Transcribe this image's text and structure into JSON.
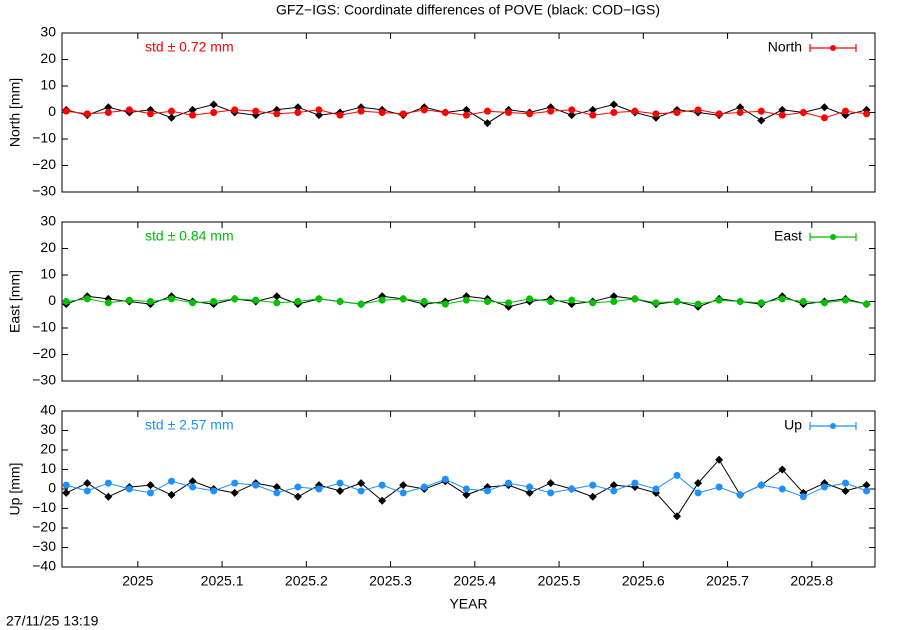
{
  "title": "GFZ−IGS: Coordinate differences of POVE (black: COD−IGS)",
  "timestamp": "27/11/25 13:19",
  "chart_data": [
    {
      "type": "line",
      "ylabel": "North [mm]",
      "annotation": "std ± 0.72 mm",
      "legend": "upper right",
      "xlim": [
        2024.91,
        2025.875
      ],
      "ylim": [
        -30,
        30
      ],
      "xticks": [
        2025,
        2025.1,
        2025.2,
        2025.3,
        2025.4,
        2025.5,
        2025.6,
        2025.7,
        2025.8
      ],
      "yticks": [
        30,
        20,
        10,
        0,
        {
          "value": -10,
          "label": "−10"
        },
        {
          "value": -20,
          "label": "−20"
        },
        {
          "value": -30,
          "label": "−30"
        }
      ],
      "x": [
        2024.915,
        2024.94,
        2024.965,
        2024.99,
        2025.015,
        2025.04,
        2025.065,
        2025.09,
        2025.115,
        2025.14,
        2025.165,
        2025.19,
        2025.215,
        2025.24,
        2025.265,
        2025.29,
        2025.315,
        2025.34,
        2025.365,
        2025.39,
        2025.415,
        2025.44,
        2025.465,
        2025.49,
        2025.515,
        2025.54,
        2025.565,
        2025.59,
        2025.615,
        2025.64,
        2025.665,
        2025.69,
        2025.715,
        2025.74,
        2025.765,
        2025.79,
        2025.815,
        2025.84,
        2025.865
      ],
      "series": [
        {
          "color": "#000000",
          "values": [
            1,
            -1,
            2,
            0,
            1,
            -2,
            1,
            3,
            0,
            -1,
            1,
            2,
            -1,
            0,
            2,
            1,
            -1,
            2,
            0,
            1,
            -4,
            1,
            0,
            2,
            -1,
            1,
            3,
            0,
            -2,
            1,
            0,
            -1,
            2,
            -3,
            1,
            0,
            2,
            -1,
            1
          ]
        },
        {
          "name": "North",
          "color": "#ff0000",
          "values": [
            0.5,
            -0.5,
            0,
            1,
            -0.5,
            0.5,
            -1,
            0,
            1,
            0.5,
            -0.5,
            0,
            1,
            -1,
            0.5,
            0,
            -0.5,
            1,
            0,
            -1,
            0.5,
            0,
            -0.5,
            0.5,
            1,
            -1,
            0,
            0.5,
            -0.5,
            0,
            1,
            -0.5,
            0,
            0.5,
            -1,
            0,
            -2,
            0.5,
            -0.5
          ]
        }
      ]
    },
    {
      "type": "line",
      "ylabel": "East [mm]",
      "annotation": "std ± 0.84 mm",
      "legend": "upper right",
      "xlim": [
        2024.91,
        2025.875
      ],
      "ylim": [
        -30,
        30
      ],
      "xticks": [
        2025,
        2025.1,
        2025.2,
        2025.3,
        2025.4,
        2025.5,
        2025.6,
        2025.7,
        2025.8
      ],
      "yticks": [
        30,
        20,
        10,
        0,
        {
          "value": -10,
          "label": "−10"
        },
        {
          "value": -20,
          "label": "−20"
        },
        {
          "value": -30,
          "label": "−30"
        }
      ],
      "x": [
        2024.915,
        2024.94,
        2024.965,
        2024.99,
        2025.015,
        2025.04,
        2025.065,
        2025.09,
        2025.115,
        2025.14,
        2025.165,
        2025.19,
        2025.215,
        2025.24,
        2025.265,
        2025.29,
        2025.315,
        2025.34,
        2025.365,
        2025.39,
        2025.415,
        2025.44,
        2025.465,
        2025.49,
        2025.515,
        2025.54,
        2025.565,
        2025.59,
        2025.615,
        2025.64,
        2025.665,
        2025.69,
        2025.715,
        2025.74,
        2025.765,
        2025.79,
        2025.815,
        2025.84,
        2025.865
      ],
      "series": [
        {
          "color": "#000000",
          "values": [
            -1,
            2,
            1,
            0,
            -1,
            2,
            0,
            -1,
            1,
            0,
            2,
            -1,
            1,
            0,
            -1,
            2,
            1,
            -1,
            0,
            2,
            1,
            -2,
            0,
            1,
            -1,
            0,
            2,
            1,
            -1,
            0,
            -2,
            1,
            0,
            -1,
            2,
            -1,
            0,
            1,
            -1
          ]
        },
        {
          "name": "East",
          "color": "#00c000",
          "values": [
            0,
            1,
            -0.5,
            0.5,
            0,
            1,
            -0.5,
            0,
            1,
            0.5,
            -0.5,
            0,
            1,
            0,
            -1,
            0.5,
            1,
            0,
            -1,
            0.5,
            0,
            -0.5,
            1,
            0,
            0.5,
            -0.5,
            0,
            1,
            -0.5,
            0,
            -1,
            0.5,
            0,
            -0.5,
            1,
            0,
            -0.5,
            0.5,
            -1
          ]
        }
      ]
    },
    {
      "type": "line",
      "ylabel": "Up [mm]",
      "xlabel": "YEAR",
      "annotation": "std ± 2.57 mm",
      "legend": "upper right",
      "xlim": [
        2024.91,
        2025.875
      ],
      "ylim": [
        -40,
        40
      ],
      "xticks": [
        2025,
        2025.1,
        2025.2,
        2025.3,
        2025.4,
        2025.5,
        2025.6,
        2025.7,
        2025.8
      ],
      "yticks": [
        40,
        30,
        20,
        10,
        0,
        {
          "value": -10,
          "label": "−10"
        },
        {
          "value": -20,
          "label": "−20"
        },
        {
          "value": -30,
          "label": "−30"
        },
        {
          "value": -40,
          "label": "−40"
        }
      ],
      "x": [
        2024.915,
        2024.94,
        2024.965,
        2024.99,
        2025.015,
        2025.04,
        2025.065,
        2025.09,
        2025.115,
        2025.14,
        2025.165,
        2025.19,
        2025.215,
        2025.24,
        2025.265,
        2025.29,
        2025.315,
        2025.34,
        2025.365,
        2025.39,
        2025.415,
        2025.44,
        2025.465,
        2025.49,
        2025.515,
        2025.54,
        2025.565,
        2025.59,
        2025.615,
        2025.64,
        2025.665,
        2025.69,
        2025.715,
        2025.74,
        2025.765,
        2025.79,
        2025.815,
        2025.84,
        2025.865
      ],
      "series": [
        {
          "color": "#000000",
          "values": [
            -2,
            3,
            -4,
            1,
            2,
            -3,
            4,
            0,
            -2,
            3,
            1,
            -4,
            2,
            -1,
            3,
            -6,
            2,
            0,
            4,
            -3,
            1,
            2,
            -2,
            3,
            0,
            -4,
            2,
            1,
            -2,
            -14,
            3,
            15,
            -3,
            2,
            10,
            -2,
            3,
            -1,
            2
          ]
        },
        {
          "name": "Up",
          "color": "#1e90ff",
          "values": [
            2,
            -1,
            3,
            0,
            -2,
            4,
            1,
            -1,
            3,
            2,
            -2,
            1,
            0,
            3,
            -1,
            2,
            -2,
            1,
            5,
            0,
            -1,
            3,
            1,
            -2,
            0,
            2,
            -1,
            3,
            0,
            7,
            -2,
            1,
            -3,
            2,
            0,
            -4,
            1,
            3,
            -1
          ]
        }
      ]
    }
  ]
}
